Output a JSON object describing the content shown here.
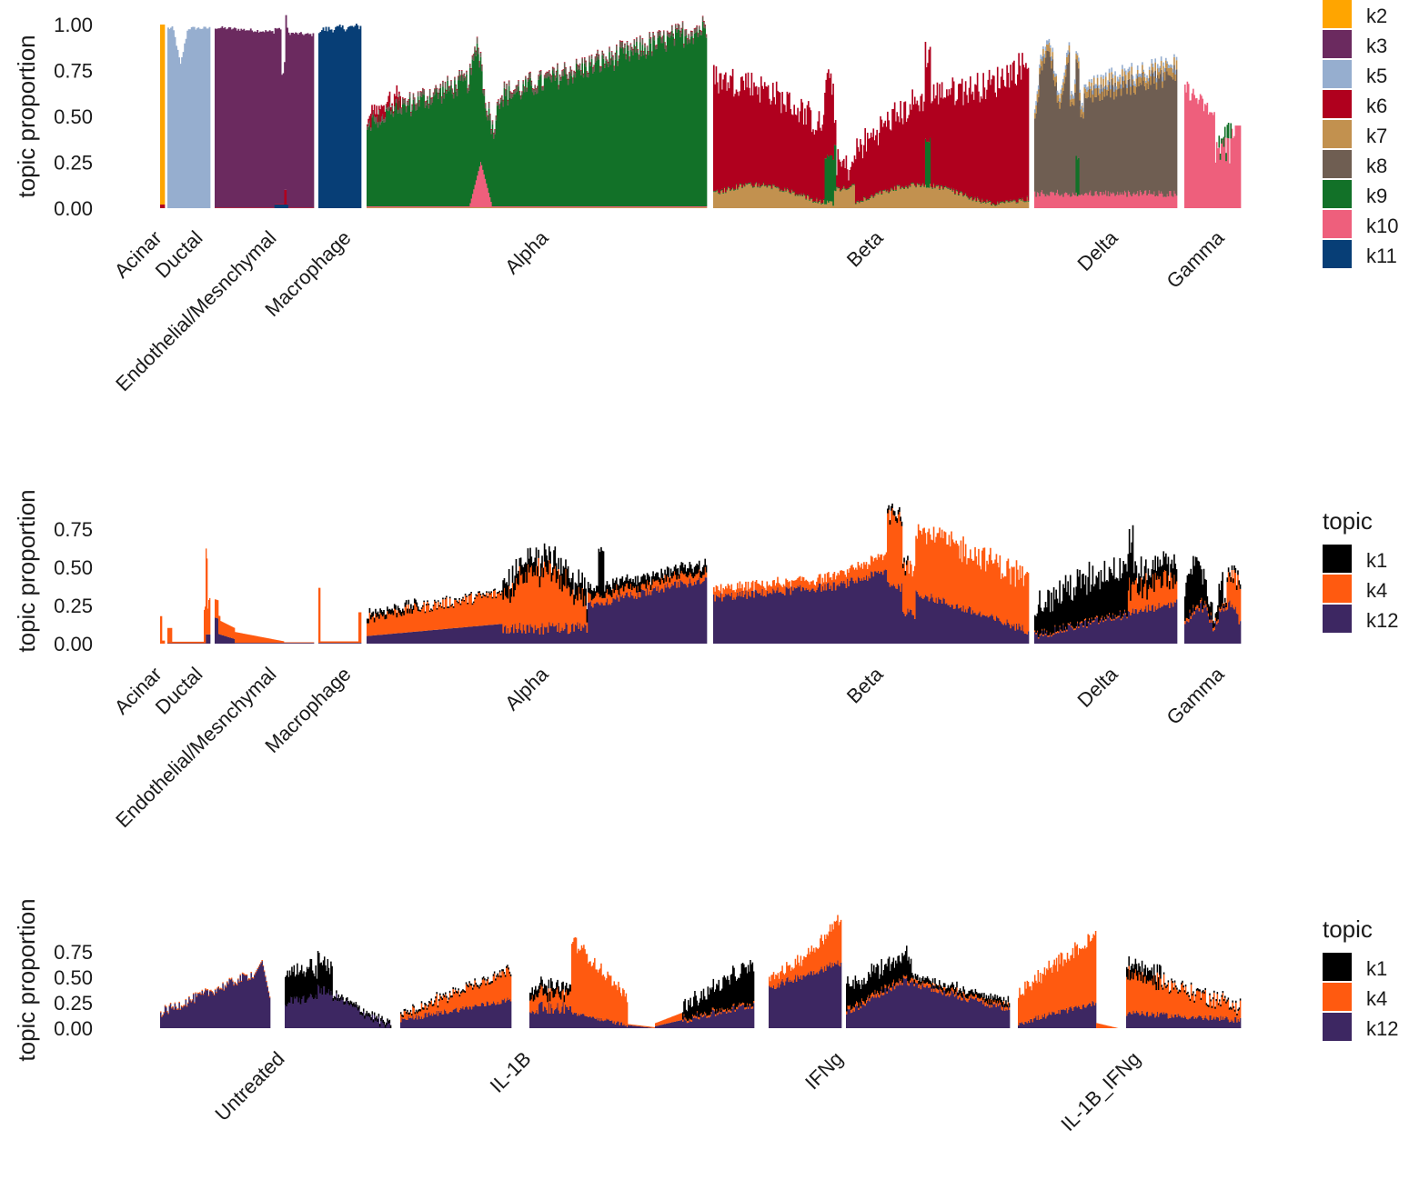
{
  "colors": {
    "k1": "#000000",
    "k2": "#FFA500",
    "k3": "#6B2A5F",
    "k4": "#FF5a10",
    "k5": "#96AECF",
    "k6": "#B0001E",
    "k7": "#C2914F",
    "k8": "#6F5E52",
    "k9": "#127128",
    "k10": "#EE5F7C",
    "k11": "#073E76",
    "k12": "#3D2762"
  },
  "chart_data": [
    {
      "type": "bar",
      "stacked": true,
      "ylabel": "topic proportion",
      "ylim": [
        0,
        1
      ],
      "yticks": [
        "0.00",
        "0.25",
        "0.50",
        "0.75",
        "1.00"
      ],
      "legend_title": "",
      "legend_position": "right",
      "legend": [
        "k2",
        "k3",
        "k5",
        "k6",
        "k7",
        "k8",
        "k9",
        "k10",
        "k11"
      ],
      "groups": [
        "Acinar",
        "Ductal",
        "Endothelial/Mesnchymal",
        "Macrophage",
        "Alpha",
        "Beta",
        "Delta",
        "Gamma"
      ],
      "series_approx_mean": [
        {
          "group": "Acinar",
          "dominant": "k2",
          "total": 1.0
        },
        {
          "group": "Ductal",
          "dominant": "k5",
          "total": 0.95
        },
        {
          "group": "Endothelial/Mesnchymal",
          "dominant": "k3",
          "total": 0.97
        },
        {
          "group": "Macrophage",
          "dominant": "k11",
          "total": 1.0
        },
        {
          "group": "Alpha",
          "dominant": "k9",
          "total": 0.75
        },
        {
          "group": "Beta",
          "dominant": "k6",
          "total": 0.7
        },
        {
          "group": "Delta",
          "dominant": "k8",
          "total": 0.75
        },
        {
          "group": "Gamma",
          "dominant": "k10",
          "total": 0.5
        }
      ]
    },
    {
      "type": "bar",
      "stacked": true,
      "ylabel": "topic proportion",
      "ylim": [
        0,
        1
      ],
      "yticks": [
        "0.00",
        "0.25",
        "0.50",
        "0.75"
      ],
      "legend_title": "topic",
      "legend_position": "right",
      "legend": [
        "k1",
        "k4",
        "k12"
      ],
      "groups": [
        "Acinar",
        "Ductal",
        "Endothelial/Mesnchymal",
        "Macrophage",
        "Alpha",
        "Beta",
        "Delta",
        "Gamma"
      ]
    },
    {
      "type": "bar",
      "stacked": true,
      "ylabel": "topic proportion",
      "ylim": [
        0,
        1
      ],
      "yticks": [
        "0.00",
        "0.25",
        "0.50",
        "0.75"
      ],
      "legend_title": "topic",
      "legend_position": "right",
      "legend": [
        "k1",
        "k4",
        "k12"
      ],
      "groups": [
        "Untreated",
        "IL-1B",
        "IFNg",
        "IL-1B_IFNg"
      ]
    }
  ]
}
